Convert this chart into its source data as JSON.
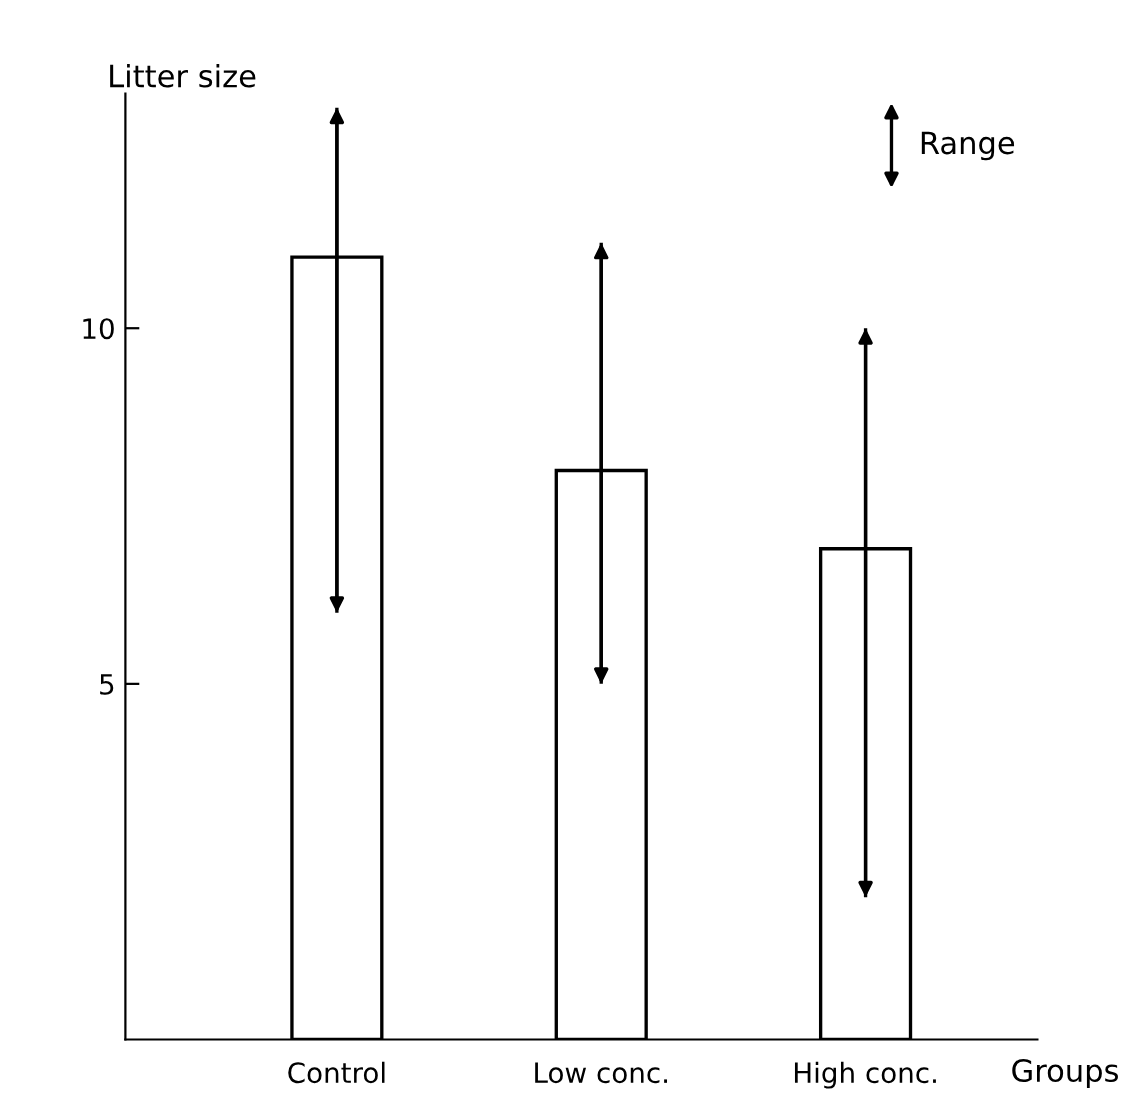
{
  "chart_data": {
    "type": "bar",
    "ylabel": "Litter size",
    "xlabel": "Groups",
    "legend_title": "Range",
    "categories": [
      "Control",
      "Low conc.",
      "High conc."
    ],
    "values": [
      11,
      8,
      6.9
    ],
    "errors": [
      [
        6,
        13.1
      ],
      [
        5,
        11.2
      ],
      [
        2,
        10
      ]
    ],
    "color": "#ffffff",
    "ylim": [
      0,
      13.3
    ],
    "yticks": [
      5,
      10
    ],
    "grid": false
  }
}
